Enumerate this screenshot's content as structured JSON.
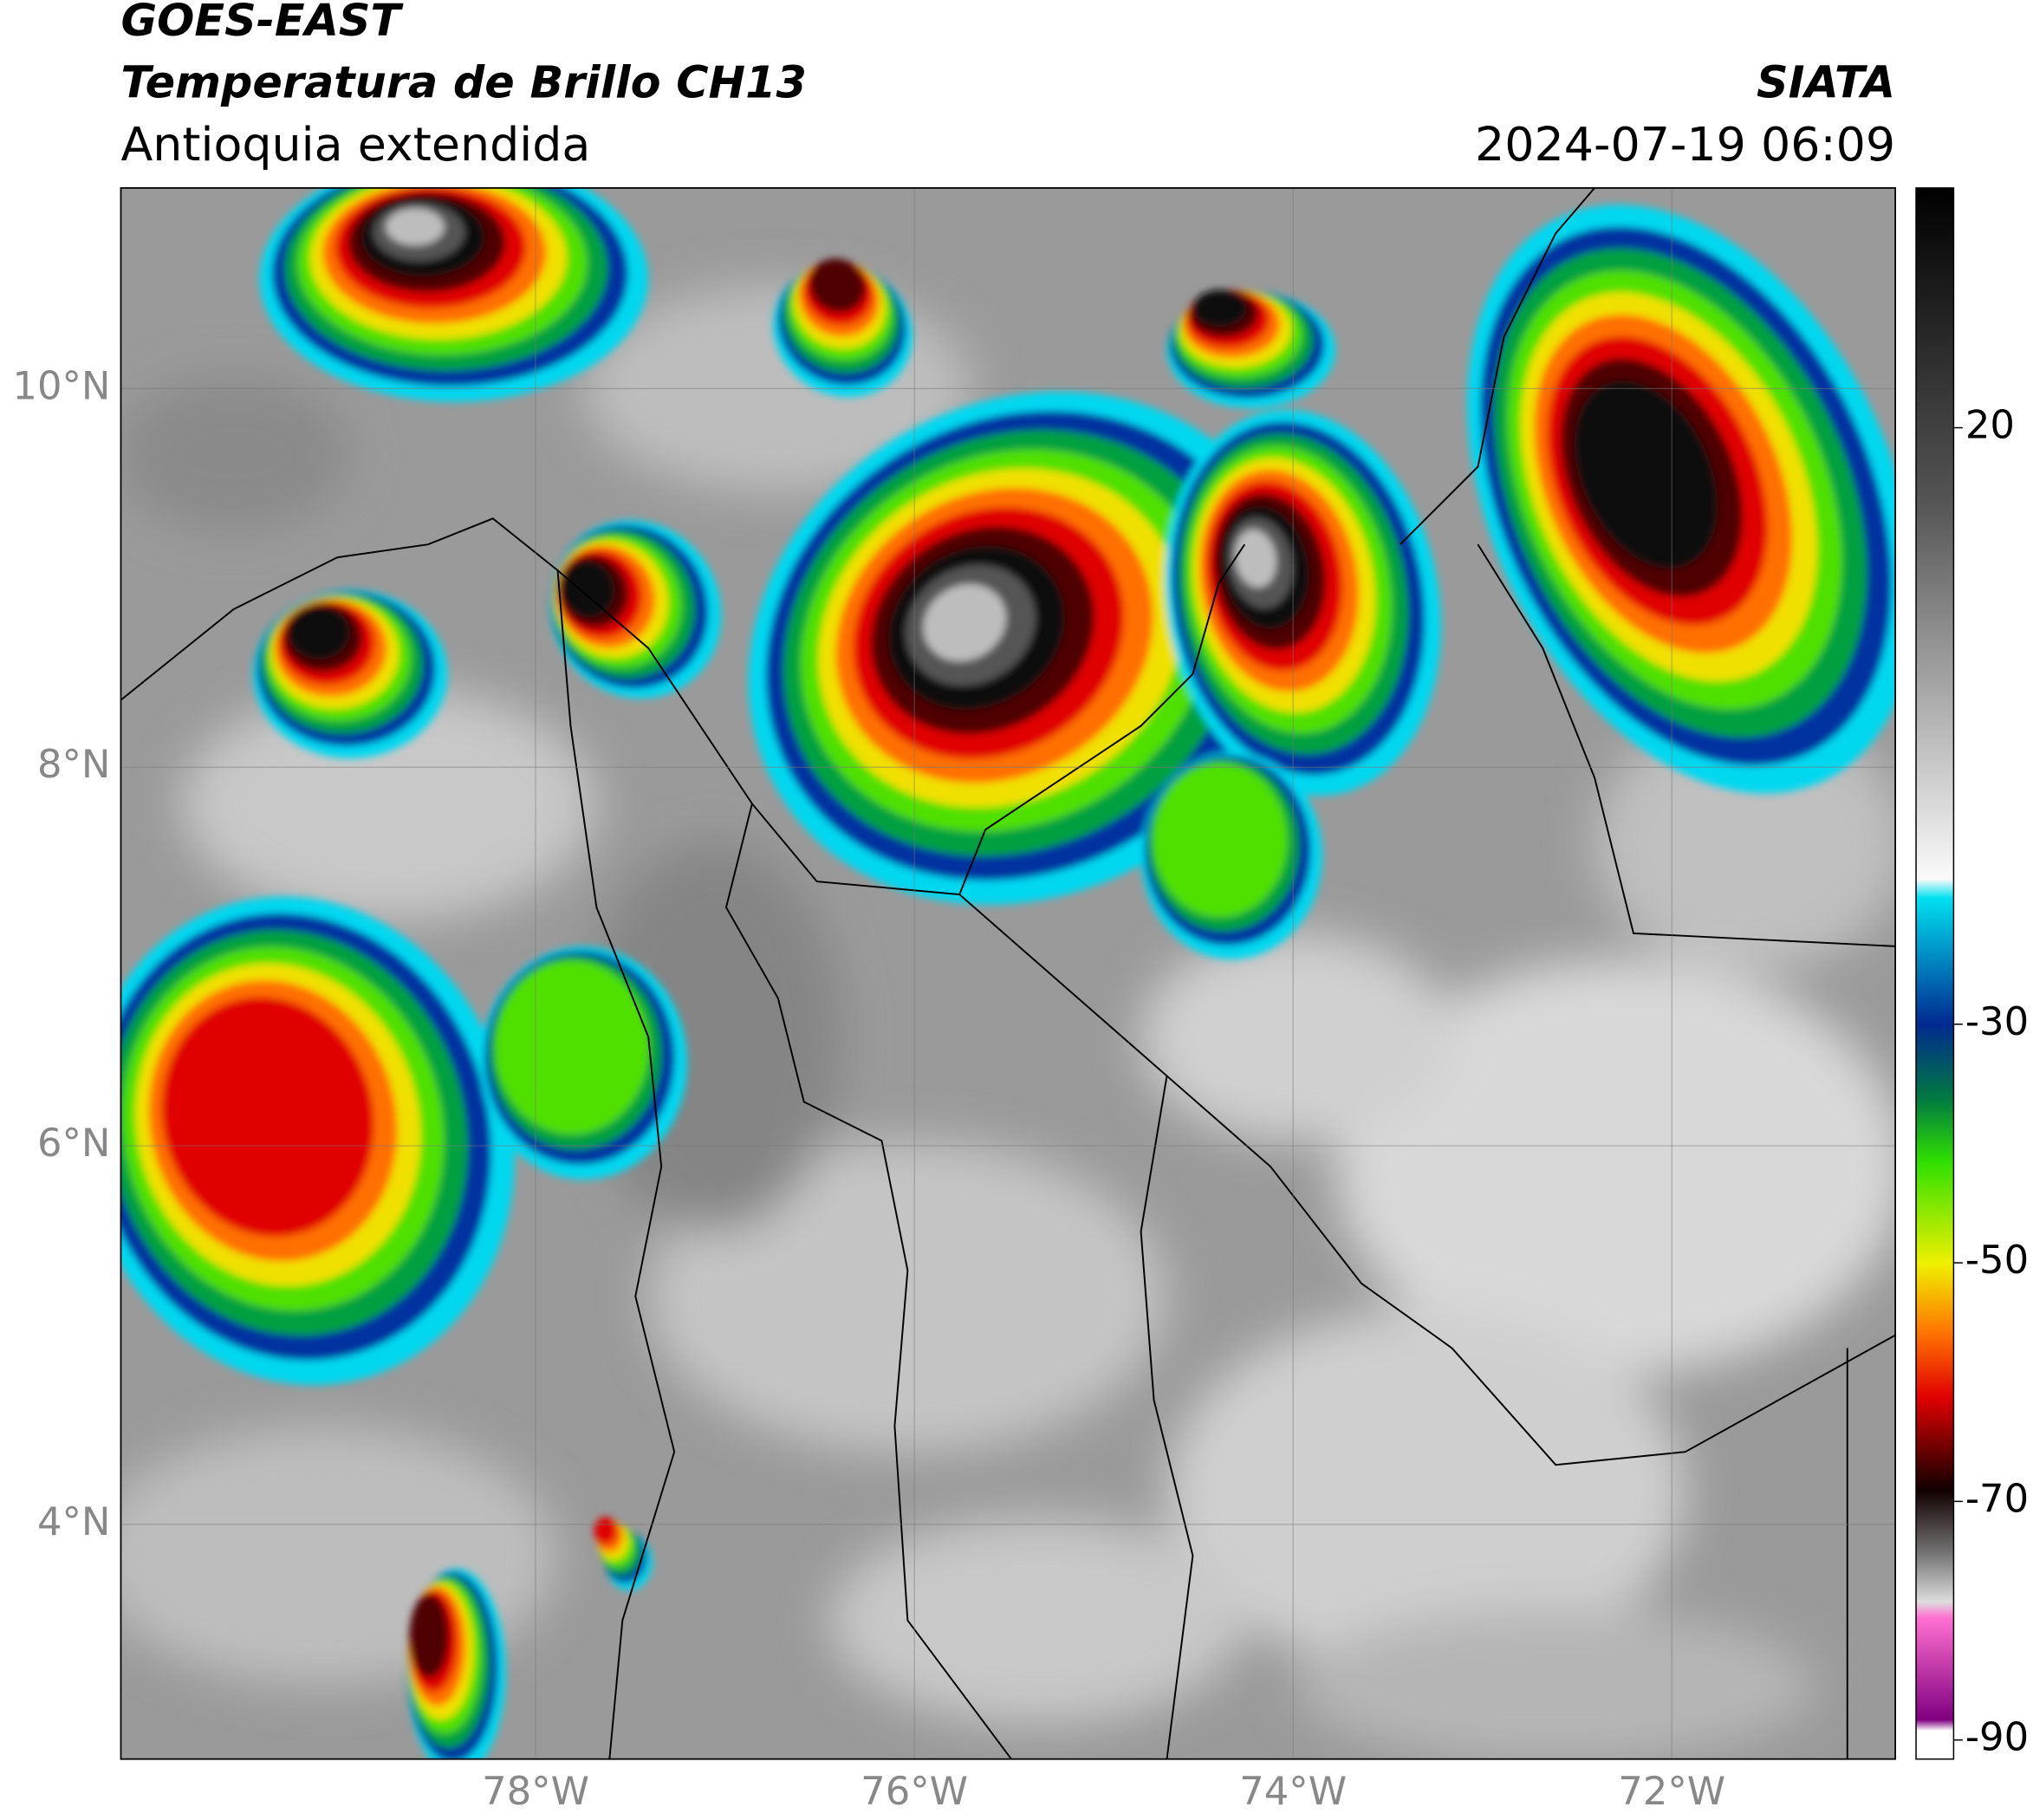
{
  "header": {
    "title": "GOES-EAST",
    "subtitle": "Temperatura de Brillo CH13",
    "region": "Antioquia extendida",
    "source": "SIATA",
    "datetime": "2024-07-19 06:09"
  },
  "map": {
    "xlim": [
      -80.19,
      -70.82
    ],
    "ylim": [
      2.76,
      11.06
    ],
    "lat_ticks": [
      {
        "value": 10,
        "label": "10°N"
      },
      {
        "value": 8,
        "label": "8°N"
      },
      {
        "value": 6,
        "label": "6°N"
      },
      {
        "value": 4,
        "label": "4°N"
      }
    ],
    "lon_ticks": [
      {
        "value": -78,
        "label": "78°W"
      },
      {
        "value": -76,
        "label": "76°W"
      },
      {
        "value": -74,
        "label": "74°W"
      },
      {
        "value": -72,
        "label": "72°W"
      }
    ]
  },
  "colorbar": {
    "lim": [
      -91.6,
      40.1
    ],
    "ticks": [
      20,
      -30,
      -50,
      -70,
      -90
    ]
  }
}
